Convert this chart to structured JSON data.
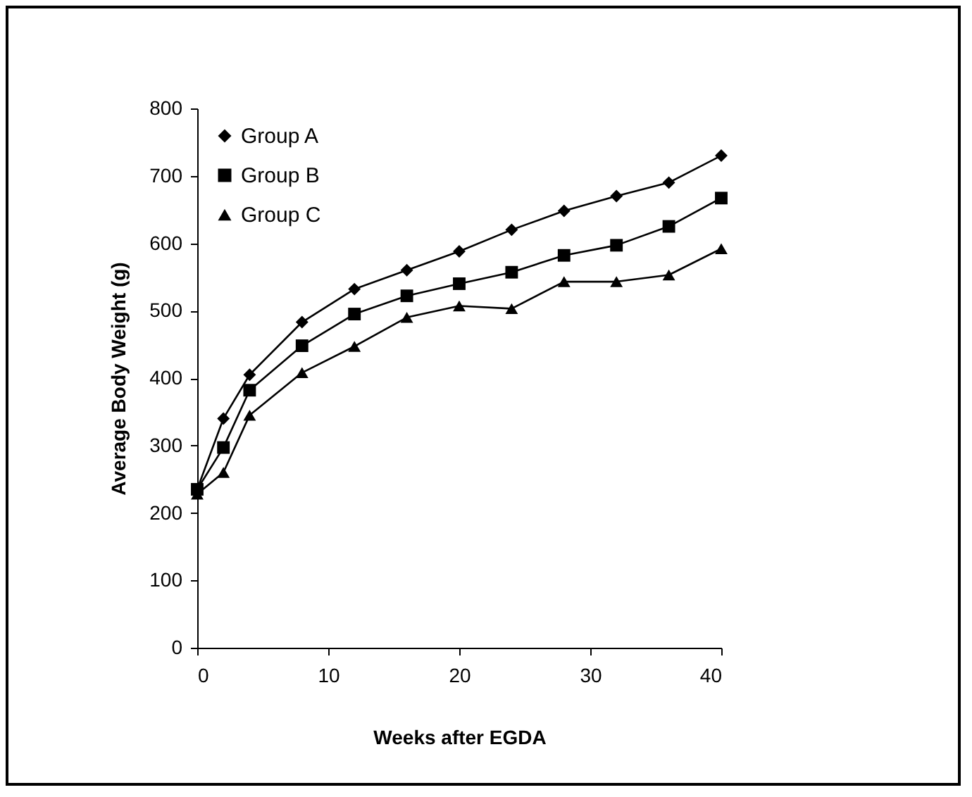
{
  "chart_data": {
    "type": "line",
    "xlabel": "Weeks after EGDA",
    "ylabel": "Average Body Weight (g)",
    "x": [
      0,
      2,
      4,
      8,
      12,
      16,
      20,
      24,
      28,
      32,
      36,
      40
    ],
    "xlim": [
      0,
      40
    ],
    "xticks": [
      0,
      10,
      20,
      30,
      40
    ],
    "ylim": [
      0,
      800
    ],
    "yticks": [
      0,
      100,
      200,
      300,
      400,
      500,
      600,
      700,
      800
    ],
    "grid": false,
    "legend": "top left",
    "line_style": "solid",
    "series": [
      {
        "name": "Group A",
        "color": "#000000",
        "marker": "diamond",
        "values": [
          235,
          340,
          405,
          483,
          532,
          560,
          588,
          620,
          648,
          670,
          690,
          730
        ]
      },
      {
        "name": "Group B",
        "color": "#000000",
        "marker": "square",
        "values": [
          235,
          297,
          382,
          448,
          495,
          522,
          540,
          557,
          582,
          597,
          625,
          667
        ]
      },
      {
        "name": "Group C",
        "color": "#000000",
        "marker": "triangle",
        "values": [
          228,
          260,
          345,
          408,
          447,
          490,
          507,
          503,
          543,
          543,
          553,
          592
        ]
      }
    ]
  }
}
